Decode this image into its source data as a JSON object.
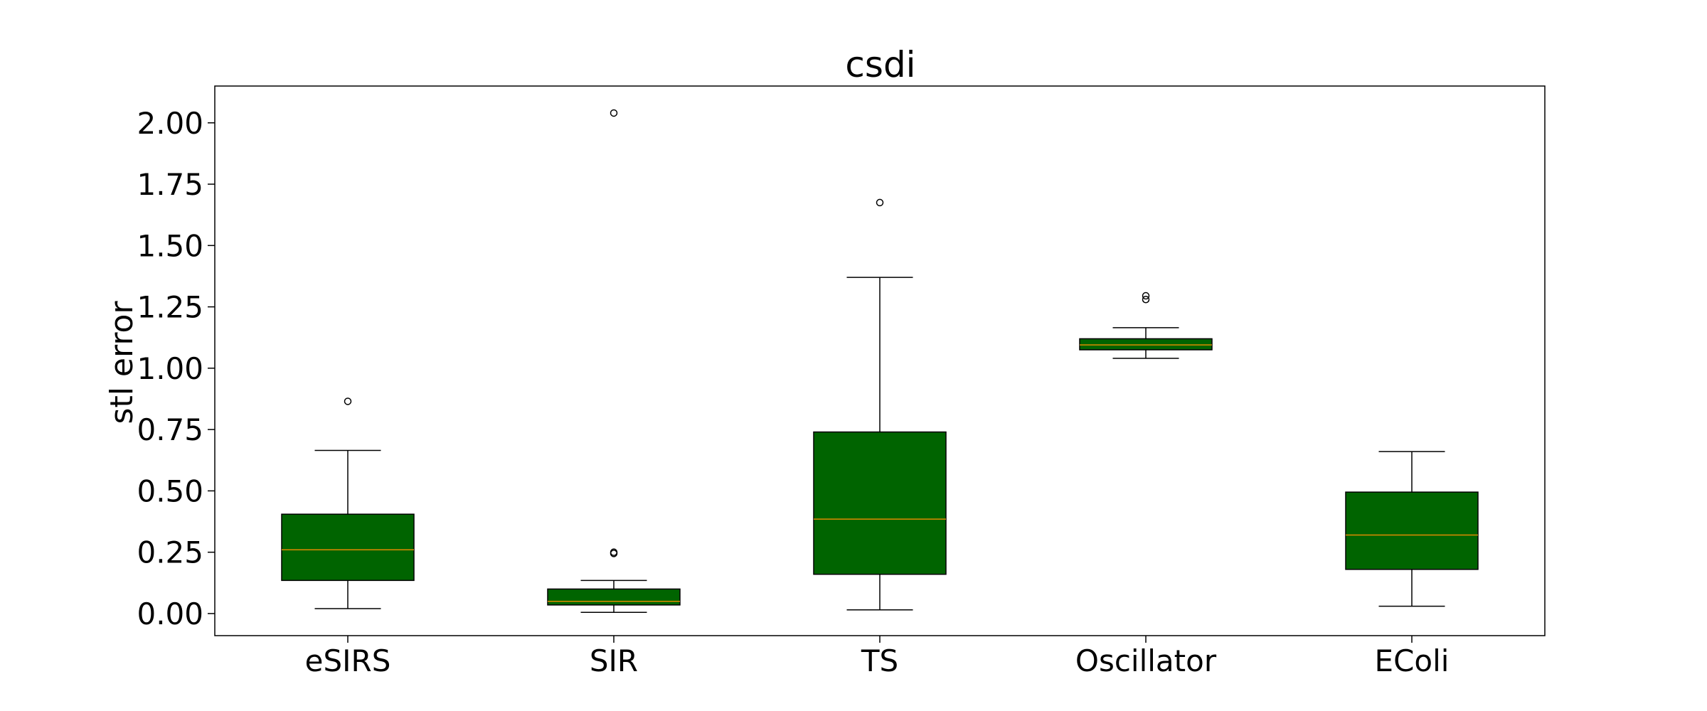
{
  "chart_data": {
    "type": "box",
    "title": "csdi",
    "xlabel": "",
    "ylabel": "stl error",
    "ylim": [
      -0.09,
      2.15
    ],
    "yticks": [
      0.0,
      0.25,
      0.5,
      0.75,
      1.0,
      1.25,
      1.5,
      1.75,
      2.0
    ],
    "ytick_labels": [
      "0.00",
      "0.25",
      "0.50",
      "0.75",
      "1.00",
      "1.25",
      "1.50",
      "1.75",
      "2.00"
    ],
    "categories": [
      "eSIRS",
      "SIR",
      "TS",
      "Oscillator",
      "EColi"
    ],
    "box_color": "#006400",
    "median_color": "#e08a00",
    "grid": false,
    "legend": "none",
    "boxes": [
      {
        "category": "eSIRS",
        "whisker_low": 0.02,
        "q1": 0.135,
        "median": 0.26,
        "q3": 0.405,
        "whisker_high": 0.665,
        "outliers": [
          0.865
        ]
      },
      {
        "category": "SIR",
        "whisker_low": 0.005,
        "q1": 0.035,
        "median": 0.05,
        "q3": 0.1,
        "whisker_high": 0.135,
        "outliers": [
          0.245,
          0.25,
          2.04
        ]
      },
      {
        "category": "TS",
        "whisker_low": 0.015,
        "q1": 0.16,
        "median": 0.385,
        "q3": 0.74,
        "whisker_high": 1.37,
        "outliers": [
          1.675
        ]
      },
      {
        "category": "Oscillator",
        "whisker_low": 1.04,
        "q1": 1.075,
        "median": 1.095,
        "q3": 1.12,
        "whisker_high": 1.165,
        "outliers": [
          1.28,
          1.295
        ]
      },
      {
        "category": "EColi",
        "whisker_low": 0.03,
        "q1": 0.18,
        "median": 0.32,
        "q3": 0.495,
        "whisker_high": 0.66,
        "outliers": []
      }
    ]
  }
}
